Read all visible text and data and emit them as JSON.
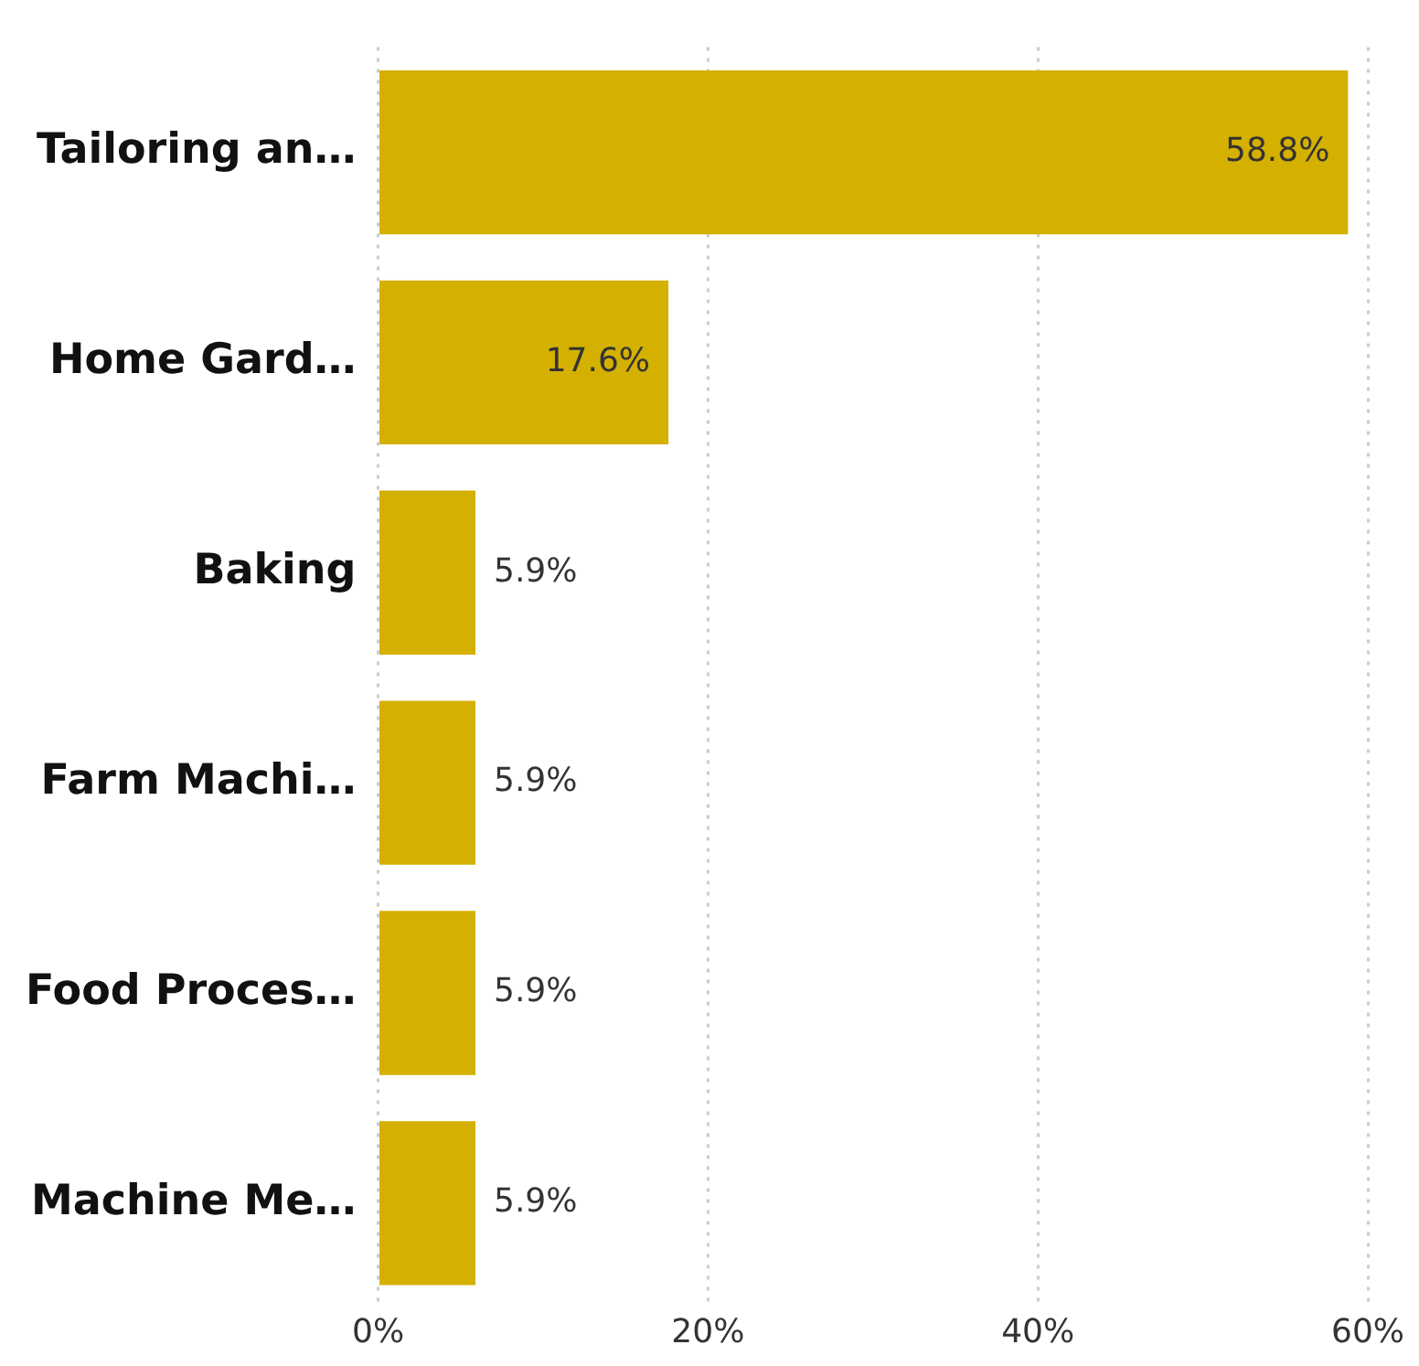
{
  "chart_data": {
    "type": "bar",
    "orientation": "horizontal",
    "categories": [
      "Tailoring an…",
      "Home Gard…",
      "Baking",
      "Farm Machi…",
      "Food Proces…",
      "Machine Me…"
    ],
    "values": [
      58.8,
      17.6,
      5.9,
      5.9,
      5.9,
      5.9
    ],
    "value_labels": [
      "58.8%",
      "17.6%",
      "5.9%",
      "5.9%",
      "5.9%",
      "5.9%"
    ],
    "color": "#d4b000",
    "xlim": [
      0,
      60
    ],
    "xticks": [
      {
        "value": 0,
        "label": "0%"
      },
      {
        "value": 20,
        "label": "20%"
      },
      {
        "value": 40,
        "label": "40%"
      },
      {
        "value": 60,
        "label": "60%"
      }
    ],
    "grid": "x",
    "legend": false
  }
}
